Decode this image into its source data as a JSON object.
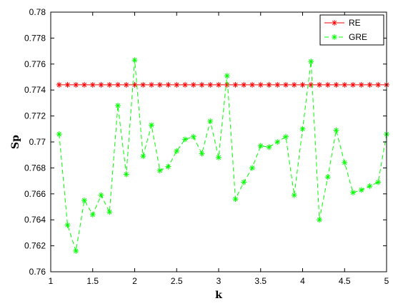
{
  "chart_data": {
    "type": "line",
    "title": "",
    "xlabel": "k",
    "ylabel": "Sp",
    "xlim": [
      1,
      5
    ],
    "ylim": [
      0.76,
      0.78
    ],
    "xticks": [
      "1",
      "1.5",
      "2",
      "2.5",
      "3",
      "3.5",
      "4",
      "4.5",
      "5"
    ],
    "yticks": [
      "0.76",
      "0.762",
      "0.764",
      "0.766",
      "0.768",
      "0.77",
      "0.772",
      "0.774",
      "0.776",
      "0.778",
      "0.78"
    ],
    "grid": false,
    "legend_position": "top-right",
    "x": [
      1.1,
      1.2,
      1.3,
      1.4,
      1.5,
      1.6,
      1.7,
      1.8,
      1.9,
      2.0,
      2.1,
      2.2,
      2.3,
      2.4,
      2.5,
      2.6,
      2.7,
      2.8,
      2.9,
      3.0,
      3.1,
      3.2,
      3.3,
      3.4,
      3.5,
      3.6,
      3.7,
      3.8,
      3.9,
      4.0,
      4.1,
      4.2,
      4.3,
      4.4,
      4.5,
      4.6,
      4.7,
      4.8,
      4.9,
      5.0
    ],
    "series": [
      {
        "name": "RE",
        "color": "#ff0000",
        "line_style": "solid",
        "marker": "asterisk",
        "values": [
          0.7744,
          0.7744,
          0.7744,
          0.7744,
          0.7744,
          0.7744,
          0.7744,
          0.7744,
          0.7744,
          0.7744,
          0.7744,
          0.7744,
          0.7744,
          0.7744,
          0.7744,
          0.7744,
          0.7744,
          0.7744,
          0.7744,
          0.7744,
          0.7744,
          0.7744,
          0.7744,
          0.7744,
          0.7744,
          0.7744,
          0.7744,
          0.7744,
          0.7744,
          0.7744,
          0.7744,
          0.7744,
          0.7744,
          0.7744,
          0.7744,
          0.7744,
          0.7744,
          0.7744,
          0.7744,
          0.7744
        ]
      },
      {
        "name": "GRE",
        "color": "#00ff00",
        "line_style": "dashed",
        "marker": "asterisk",
        "values": [
          0.7706,
          0.7636,
          0.7616,
          0.7655,
          0.7644,
          0.7659,
          0.7646,
          0.7728,
          0.7675,
          0.7763,
          0.7689,
          0.7713,
          0.7678,
          0.7681,
          0.7693,
          0.7702,
          0.7704,
          0.7691,
          0.7716,
          0.7688,
          0.7751,
          0.7656,
          0.7669,
          0.768,
          0.7697,
          0.7696,
          0.77,
          0.7704,
          0.7659,
          0.771,
          0.7762,
          0.764,
          0.7673,
          0.7709,
          0.7684,
          0.7661,
          0.7663,
          0.7666,
          0.7669,
          0.7706
        ]
      }
    ]
  }
}
